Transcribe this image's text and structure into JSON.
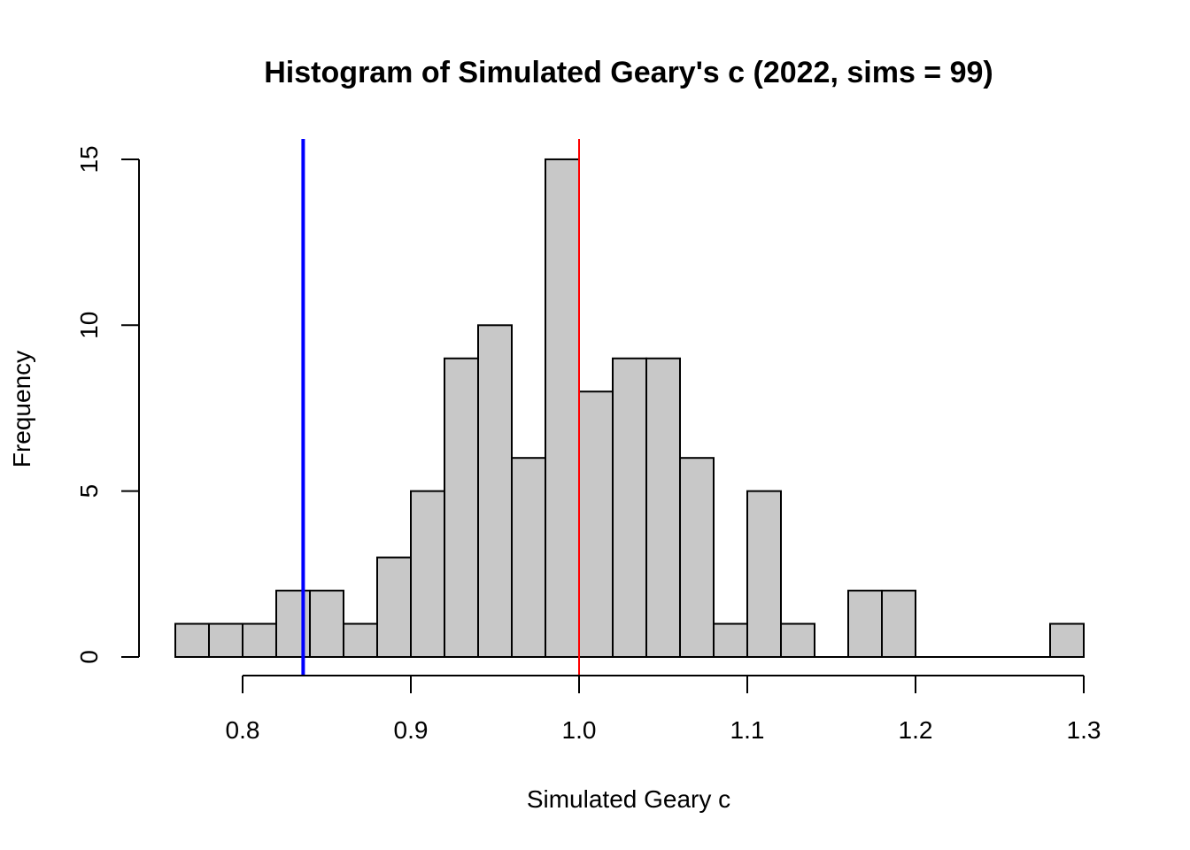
{
  "chart_data": {
    "type": "bar",
    "title": "Histogram of Simulated Geary's c (2022, sims = 99)",
    "xlabel": "Simulated Geary c",
    "ylabel": "Frequency",
    "xlim": [
      0.76,
      1.3
    ],
    "ylim": [
      0,
      15
    ],
    "x_ticks": [
      0.8,
      0.9,
      1.0,
      1.1,
      1.2,
      1.3
    ],
    "x_tick_labels": [
      "0.8",
      "0.9",
      "1.0",
      "1.1",
      "1.2",
      "1.3"
    ],
    "y_ticks": [
      0,
      5,
      10,
      15
    ],
    "y_tick_labels": [
      "0",
      "5",
      "10",
      "15"
    ],
    "bin_edges": [
      0.76,
      0.78,
      0.8,
      0.82,
      0.84,
      0.86,
      0.88,
      0.9,
      0.92,
      0.94,
      0.96,
      0.98,
      1.0,
      1.02,
      1.04,
      1.06,
      1.08,
      1.1,
      1.12,
      1.14,
      1.16,
      1.18,
      1.2,
      1.22,
      1.24,
      1.26,
      1.28,
      1.3
    ],
    "values": [
      1,
      1,
      1,
      2,
      2,
      1,
      3,
      5,
      9,
      10,
      6,
      15,
      8,
      9,
      9,
      6,
      1,
      5,
      1,
      0,
      2,
      2,
      0,
      0,
      0,
      0,
      1
    ],
    "bar_fill": "#c8c8c8",
    "vlines": [
      {
        "x": 0.836,
        "color": "#0000ff"
      },
      {
        "x": 1.0,
        "color": "#ff0000"
      }
    ],
    "grid": false,
    "legend": "none"
  }
}
